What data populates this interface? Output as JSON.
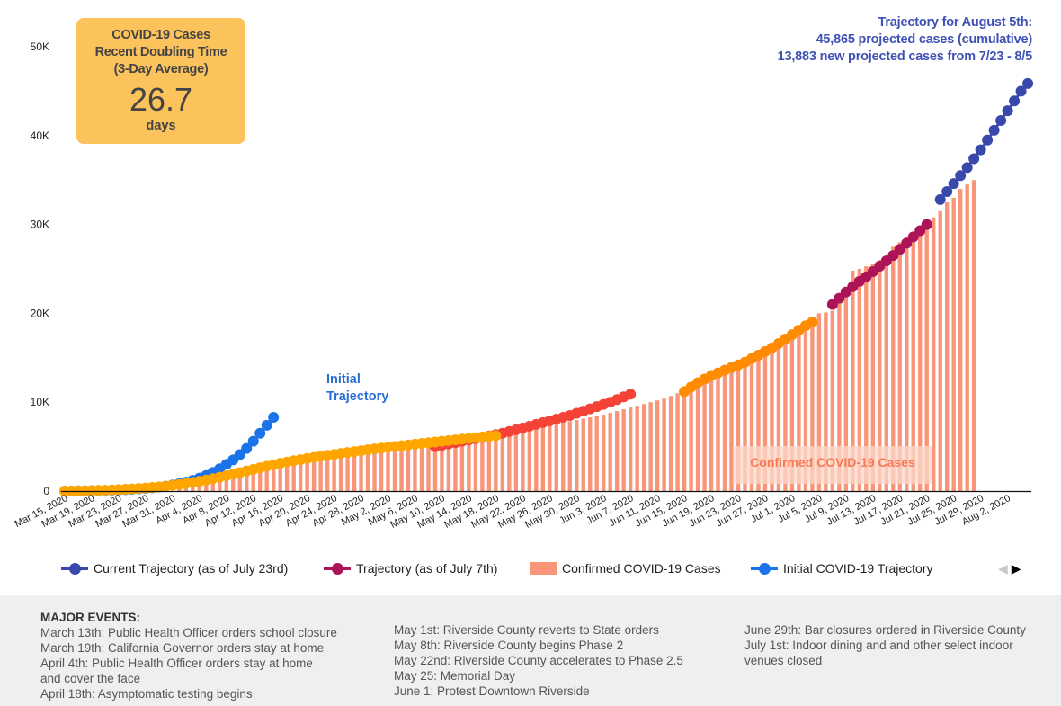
{
  "kpi": {
    "title_lines": [
      "COVID-19 Cases",
      "Recent Doubling Time",
      "(3-Day Average)"
    ],
    "value": "26.7",
    "unit": "days"
  },
  "annotations": {
    "projection_lines": [
      "Trajectory for August 5th:",
      "45,865 projected cases (cumulative)",
      "13,883 new projected cases from 7/23 - 8/5"
    ],
    "initial_lines": [
      "Initial",
      "Trajectory"
    ],
    "bar_label": "Confirmed COVID-19 Cases"
  },
  "legend": {
    "items": [
      {
        "label": "Current Trajectory (as of July 23rd)",
        "type": "line",
        "color": "#3949ab"
      },
      {
        "label": "Trajectory (as of July 7th)",
        "type": "line",
        "color": "#ad1457"
      },
      {
        "label": "Confirmed COVID-19 Cases",
        "type": "square",
        "color": "#f9967a"
      },
      {
        "label": "Initial COVID-19 Trajectory",
        "type": "line",
        "color": "#1a73e8"
      }
    ],
    "pager_prev": "◀",
    "pager_next": "▶"
  },
  "events": {
    "heading": "MAJOR EVENTS:",
    "columns": [
      [
        "March 13th: Public Health Officer orders school closure",
        "March 19th: California Governor orders stay at home",
        "April 4th: Public Health Officer orders stay at home",
        "and cover the face",
        "April 18th: Asymptomatic testing begins"
      ],
      [
        "May 1st: Riverside County reverts to State orders",
        "May 8th: Riverside County begins Phase 2",
        "May 22nd: Riverside County accelerates to Phase 2.5",
        "May 25: Memorial Day",
        "June 1: Protest Downtown Riverside"
      ],
      [
        "June 29th: Bar closures ordered in Riverside County",
        "July 1st: Indoor dining and and other select indoor",
        "venues closed"
      ]
    ]
  },
  "chart_data": {
    "type": "bar",
    "title": "",
    "xlabel": "",
    "ylabel": "",
    "ylim": [
      0,
      50000
    ],
    "yticks": [
      0,
      10000,
      20000,
      30000,
      40000,
      50000
    ],
    "ytick_labels": [
      "0",
      "10K",
      "20K",
      "30K",
      "40K",
      "50K"
    ],
    "x_start": "2020-03-15",
    "x_end": "2020-08-05",
    "xtick_labels": [
      "Mar 15, 2020",
      "Mar 19, 2020",
      "Mar 23, 2020",
      "Mar 27, 2020",
      "Mar 31, 2020",
      "Apr 4, 2020",
      "Apr 8, 2020",
      "Apr 12, 2020",
      "Apr 16, 2020",
      "Apr 20, 2020",
      "Apr 24, 2020",
      "Apr 28, 2020",
      "May 2, 2020",
      "May 6, 2020",
      "May 10, 2020",
      "May 14, 2020",
      "May 18, 2020",
      "May 22, 2020",
      "May 26, 2020",
      "May 30, 2020",
      "Jun 3, 2020",
      "Jun 7, 2020",
      "Jun 11, 2020",
      "Jun 15, 2020",
      "Jun 19, 2020",
      "Jun 23, 2020",
      "Jun 27, 2020",
      "Jul 1, 2020",
      "Jul 5, 2020",
      "Jul 9, 2020",
      "Jul 13, 2020",
      "Jul 17, 2020",
      "Jul 21, 2020",
      "Jul 25, 2020",
      "Jul 29, 2020",
      "Aug 2, 2020"
    ],
    "grid": false,
    "legend_position": "bottom",
    "series": [
      {
        "name": "Confirmed COVID-19 Cases",
        "kind": "bar",
        "color": "#f9967a",
        "start_day": 17,
        "values": [
          600,
          700,
          800,
          900,
          1000,
          1100,
          1250,
          1400,
          1550,
          1700,
          1850,
          2000,
          2150,
          2300,
          2450,
          2600,
          2750,
          2900,
          3000,
          3150,
          3300,
          3400,
          3500,
          3600,
          3700,
          3800,
          3900,
          4000,
          4100,
          4200,
          4300,
          4400,
          4500,
          4600,
          4700,
          4800,
          4900,
          5000,
          5100,
          5200,
          5300,
          5400,
          5500,
          5600,
          5750,
          5900,
          6050,
          6200,
          6350,
          6500,
          6650,
          6800,
          6950,
          7100,
          7250,
          7400,
          7550,
          7700,
          7850,
          8000,
          8150,
          8300,
          8450,
          8600,
          8800,
          9000,
          9200,
          9400,
          9600,
          9800,
          10000,
          10200,
          10400,
          10700,
          11000,
          11400,
          11800,
          12200,
          12600,
          13000,
          13300,
          13600,
          13900,
          14200,
          14500,
          14800,
          15100,
          15500,
          15900,
          16300,
          16700,
          17200,
          17700,
          18200,
          19000,
          20000,
          20100,
          20300,
          21500,
          22500,
          24800,
          25000,
          25300,
          25600,
          26000,
          26500,
          27500,
          28000,
          28600,
          29000,
          29400,
          30000,
          30800,
          31500,
          32500,
          33000,
          34000,
          34500,
          35000
        ]
      },
      {
        "name": "Initial COVID-19 Trajectory",
        "kind": "line",
        "color": "#1a73e8",
        "start_day": 0,
        "values": [
          0,
          10,
          20,
          30,
          45,
          60,
          80,
          100,
          130,
          160,
          200,
          250,
          300,
          370,
          450,
          550,
          680,
          820,
          1000,
          1200,
          1450,
          1750,
          2100,
          2500,
          3000,
          3500,
          4100,
          4800,
          5600,
          6500,
          7400,
          8300
        ]
      },
      {
        "name": "Trajectory (early, orange)",
        "kind": "line",
        "color": "#ffa500",
        "start_day": 0,
        "values": [
          0,
          10,
          20,
          40,
          60,
          80,
          100,
          130,
          160,
          200,
          240,
          290,
          340,
          400,
          470,
          550,
          640,
          740,
          850,
          970,
          1100,
          1240,
          1390,
          1550,
          1720,
          1900,
          2080,
          2260,
          2440,
          2620,
          2800,
          2960,
          3120,
          3270,
          3410,
          3540,
          3670,
          3790,
          3910,
          4020,
          4130,
          4240,
          4340,
          4440,
          4540,
          4640,
          4740,
          4830,
          4920,
          5010,
          5100,
          5190,
          5280,
          5360,
          5440,
          5520,
          5600,
          5680,
          5760,
          5840,
          5920,
          6000,
          6080,
          6160,
          6240
        ]
      },
      {
        "name": "Trajectory (mid, red)",
        "kind": "line",
        "color": "#f44336",
        "start_day": 55,
        "values": [
          5000,
          5150,
          5300,
          5450,
          5600,
          5750,
          5900,
          6050,
          6200,
          6350,
          6500,
          6700,
          6900,
          7100,
          7300,
          7500,
          7700,
          7900,
          8100,
          8300,
          8500,
          8750,
          9000,
          9250,
          9500,
          9750,
          10000,
          10300,
          10600,
          10900
        ]
      },
      {
        "name": "Trajectory (June, orange)",
        "kind": "line",
        "color": "#ff8c00",
        "start_day": 92,
        "values": [
          11200,
          11700,
          12200,
          12600,
          13000,
          13300,
          13600,
          13900,
          14200,
          14500,
          14900,
          15300,
          15700,
          16100,
          16600,
          17100,
          17600,
          18100,
          18600,
          19000
        ]
      },
      {
        "name": "Trajectory (as of July 7th)",
        "kind": "line",
        "color": "#ad1457",
        "start_day": 114,
        "values": [
          21000,
          21700,
          22400,
          23000,
          23600,
          24100,
          24700,
          25300,
          25900,
          26500,
          27200,
          27900,
          28600,
          29300,
          30000
        ]
      },
      {
        "name": "Current Trajectory (as of July 23rd)",
        "kind": "line",
        "color": "#3949ab",
        "start_day": 130,
        "values": [
          32800,
          33700,
          34600,
          35500,
          36400,
          37400,
          38400,
          39500,
          40600,
          41700,
          42800,
          43900,
          45000,
          45865
        ]
      }
    ]
  }
}
